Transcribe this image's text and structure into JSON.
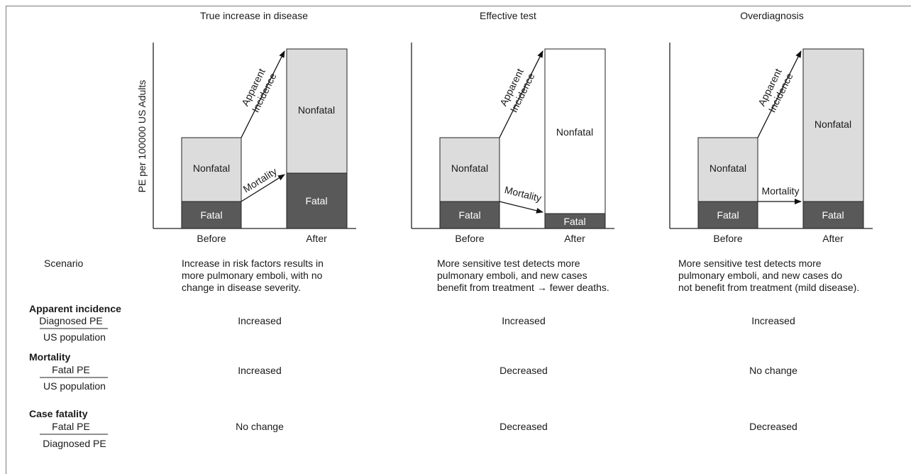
{
  "y_axis_label": "PE per 100000 US Adults",
  "panels": [
    {
      "title": "True increase in disease",
      "before_label": "Before",
      "after_label": "After",
      "before": {
        "fatal_label": "Fatal",
        "nonfatal_label": "Nonfatal"
      },
      "after": {
        "fatal_label": "Fatal",
        "nonfatal_label": "Nonfatal"
      },
      "incidence_label_1": "Apparent",
      "incidence_label_2": "Incidence",
      "mortality_label": "Mortality",
      "scenario_lines": [
        "Increase in risk factors results in",
        "more pulmonary emboli, with no",
        "change in disease severity."
      ],
      "apparent_incidence": "Increased",
      "mortality": "Increased",
      "case_fatality": "No change"
    },
    {
      "title": "Effective test",
      "before_label": "Before",
      "after_label": "After",
      "before": {
        "fatal_label": "Fatal",
        "nonfatal_label": "Nonfatal"
      },
      "after": {
        "fatal_label": "Fatal",
        "nonfatal_label": "Nonfatal"
      },
      "incidence_label_1": "Apparent",
      "incidence_label_2": "Incidence",
      "mortality_label": "Mortality",
      "scenario_lines": [
        "More sensitive test detects more",
        "pulmonary emboli, and new cases",
        "benefit from treatment → fewer deaths."
      ],
      "apparent_incidence": "Increased",
      "mortality": "Decreased",
      "case_fatality": "Decreased"
    },
    {
      "title": "Overdiagnosis",
      "before_label": "Before",
      "after_label": "After",
      "before": {
        "fatal_label": "Fatal",
        "nonfatal_label": "Nonfatal"
      },
      "after": {
        "fatal_label": "Fatal",
        "nonfatal_label": "Nonfatal"
      },
      "incidence_label_1": "Apparent",
      "incidence_label_2": "Incidence",
      "mortality_label": "Mortality",
      "scenario_lines": [
        "More sensitive test detects more",
        "pulmonary emboli, and new cases do",
        "not benefit from treatment (mild disease)."
      ],
      "apparent_incidence": "Increased",
      "mortality": "No change",
      "case_fatality": "Decreased"
    }
  ],
  "rows": {
    "scenario": {
      "label": "Scenario"
    },
    "apparent_incidence": {
      "label": "Apparent incidence",
      "numerator": "Diagnosed PE",
      "denominator": "US population"
    },
    "mortality": {
      "label": "Mortality",
      "numerator": "Fatal PE",
      "denominator": "US population"
    },
    "case_fatality": {
      "label": "Case fatality",
      "numerator": "Fatal PE",
      "denominator": "Diagnosed PE"
    }
  }
}
